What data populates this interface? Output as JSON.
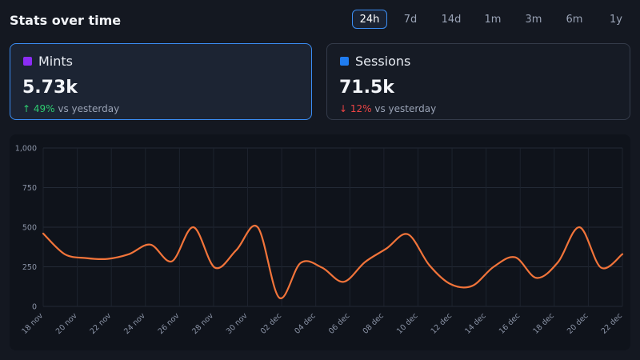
{
  "header": {
    "title": "Stats over time"
  },
  "time_ranges": [
    {
      "label": "24h",
      "active": true
    },
    {
      "label": "7d",
      "active": false
    },
    {
      "label": "14d",
      "active": false
    },
    {
      "label": "1m",
      "active": false
    },
    {
      "label": "3m",
      "active": false
    },
    {
      "label": "6m",
      "active": false
    },
    {
      "label": "1y",
      "active": false
    }
  ],
  "cards": [
    {
      "label": "Mints",
      "value": "5.73k",
      "delta": "49%",
      "direction": "up",
      "suffix": "vs yesterday",
      "color": "#8b2cf5",
      "selected": true
    },
    {
      "label": "Sessions",
      "value": "71.5k",
      "delta": "12%",
      "direction": "down",
      "suffix": "vs yesterday",
      "color": "#1f7cf0",
      "selected": false
    }
  ],
  "icons": {
    "up": "arrow-up-icon",
    "down": "arrow-down-icon"
  },
  "chart_data": {
    "type": "line",
    "series_color": "#f2743a",
    "grid": true,
    "ylim": [
      0,
      1000
    ],
    "yticks": [
      {
        "v": 0,
        "label": "0"
      },
      {
        "v": 250,
        "label": "250"
      },
      {
        "v": 500,
        "label": "500"
      },
      {
        "v": 750,
        "label": "750"
      },
      {
        "v": 1000,
        "label": "1,000"
      }
    ],
    "xlim": [
      0,
      34
    ],
    "xticks": [
      {
        "i": 0,
        "label": "18 nov"
      },
      {
        "i": 2,
        "label": "20 nov"
      },
      {
        "i": 4,
        "label": "22 nov"
      },
      {
        "i": 6,
        "label": "24 nov"
      },
      {
        "i": 8,
        "label": "26 nov"
      },
      {
        "i": 10,
        "label": "28 nov"
      },
      {
        "i": 12,
        "label": "30 nov"
      },
      {
        "i": 14,
        "label": "02 dec"
      },
      {
        "i": 16,
        "label": "04 dec"
      },
      {
        "i": 18,
        "label": "06 dec"
      },
      {
        "i": 20,
        "label": "08 dec"
      },
      {
        "i": 22,
        "label": "10 dec"
      },
      {
        "i": 24,
        "label": "12 dec"
      },
      {
        "i": 26,
        "label": "14 dec"
      },
      {
        "i": 28,
        "label": "16 dec"
      },
      {
        "i": 30,
        "label": "18 dec"
      },
      {
        "i": 32,
        "label": "20 dec"
      },
      {
        "i": 34,
        "label": "22 dec"
      }
    ],
    "series": [
      {
        "values": [
          {
            "i": 0,
            "v": 460
          },
          {
            "i": 1,
            "v": 330
          },
          {
            "i": 2,
            "v": 305
          },
          {
            "i": 3,
            "v": 300
          },
          {
            "i": 4,
            "v": 330
          },
          {
            "i": 5,
            "v": 390
          },
          {
            "i": 6,
            "v": 285
          },
          {
            "i": 7,
            "v": 500
          },
          {
            "i": 8,
            "v": 245
          },
          {
            "i": 9,
            "v": 355
          },
          {
            "i": 10,
            "v": 500
          },
          {
            "i": 11,
            "v": 55
          },
          {
            "i": 12,
            "v": 275
          },
          {
            "i": 13,
            "v": 245
          },
          {
            "i": 14,
            "v": 155
          },
          {
            "i": 15,
            "v": 280
          },
          {
            "i": 16,
            "v": 365
          },
          {
            "i": 17,
            "v": 455
          },
          {
            "i": 18,
            "v": 260
          },
          {
            "i": 19,
            "v": 140
          },
          {
            "i": 20,
            "v": 130
          },
          {
            "i": 21,
            "v": 250
          },
          {
            "i": 22,
            "v": 310
          },
          {
            "i": 23,
            "v": 180
          },
          {
            "i": 24,
            "v": 280
          },
          {
            "i": 25,
            "v": 500
          },
          {
            "i": 26,
            "v": 245
          },
          {
            "i": 27,
            "v": 330
          }
        ]
      }
    ]
  }
}
